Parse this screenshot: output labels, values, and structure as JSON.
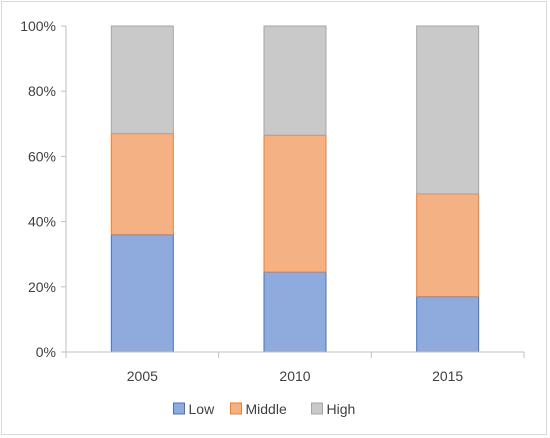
{
  "chart_data": {
    "type": "bar",
    "stacked": true,
    "categories": [
      "2005",
      "2010",
      "2015"
    ],
    "series": [
      {
        "name": "Low",
        "values": [
          36,
          24.5,
          17
        ],
        "color": "#8faadc",
        "edge": "#4472c4"
      },
      {
        "name": "Middle",
        "values": [
          31,
          42,
          31.5
        ],
        "color": "#f4b183",
        "edge": "#ed7d31"
      },
      {
        "name": "High",
        "values": [
          33,
          33.5,
          51.5
        ],
        "color": "#c9c9c9",
        "edge": "#a5a5a5"
      }
    ],
    "ylim": [
      0,
      100
    ],
    "yticks": [
      "0%",
      "20%",
      "40%",
      "60%",
      "80%",
      "100%"
    ],
    "grid": false,
    "legend": "bottom",
    "title": "",
    "xlabel": "",
    "ylabel": ""
  }
}
